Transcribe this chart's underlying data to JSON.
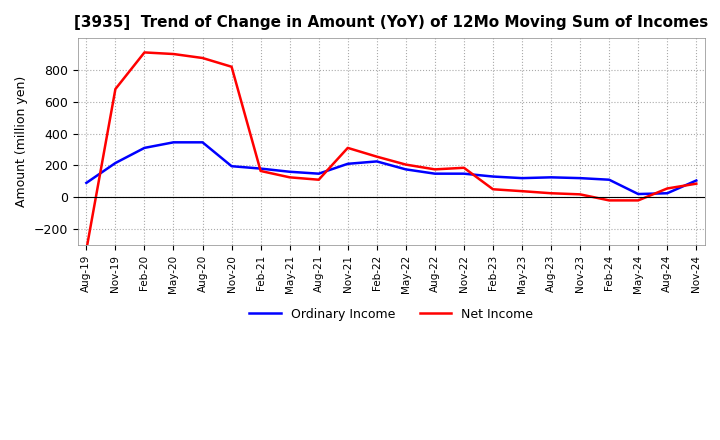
{
  "title": "[3935]  Trend of Change in Amount (YoY) of 12Mo Moving Sum of Incomes",
  "ylabel": "Amount (million yen)",
  "ylim": [
    -300,
    1000
  ],
  "yticks": [
    -200,
    0,
    200,
    400,
    600,
    800
  ],
  "background_color": "#ffffff",
  "grid_color": "#aaaaaa",
  "x_labels": [
    "Aug-19",
    "Nov-19",
    "Feb-20",
    "May-20",
    "Aug-20",
    "Nov-20",
    "Feb-21",
    "May-21",
    "Aug-21",
    "Nov-21",
    "Feb-22",
    "May-22",
    "Aug-22",
    "Nov-22",
    "Feb-23",
    "May-23",
    "Aug-23",
    "Nov-23",
    "Feb-24",
    "May-24",
    "Aug-24",
    "Nov-24"
  ],
  "ordinary_income": [
    90,
    215,
    310,
    345,
    345,
    195,
    180,
    160,
    148,
    210,
    225,
    175,
    148,
    148,
    130,
    120,
    125,
    120,
    110,
    20,
    25,
    105
  ],
  "net_income": [
    -330,
    680,
    910,
    900,
    875,
    820,
    165,
    125,
    110,
    310,
    255,
    205,
    175,
    185,
    50,
    38,
    25,
    18,
    -20,
    -20,
    55,
    85
  ],
  "ordinary_color": "#0000ff",
  "net_color": "#ff0000",
  "line_width": 1.8,
  "legend_labels": [
    "Ordinary Income",
    "Net Income"
  ]
}
